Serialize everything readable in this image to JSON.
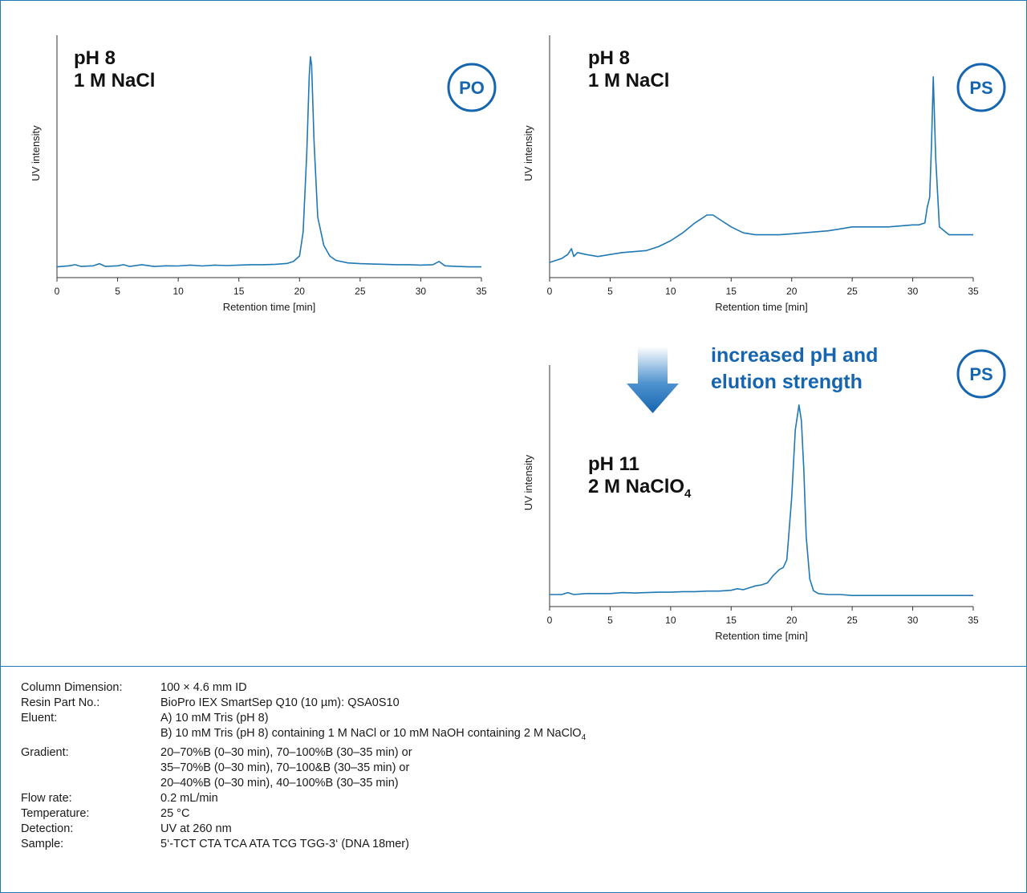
{
  "colors": {
    "trace": "#1f78b4",
    "accent": "#1565b0",
    "axis": "#333333"
  },
  "chart_data": [
    {
      "type": "line",
      "id": "po",
      "badge": "PO",
      "annot_line1": "pH 8",
      "annot_line2": "1 M NaCl",
      "annot_sub": "",
      "xlabel": "Retention time [min]",
      "ylabel": "UV intensity",
      "xlim": [
        0,
        35
      ],
      "ylim": [
        0,
        1
      ],
      "xticks": [
        "0",
        "5",
        "10",
        "15",
        "20",
        "25",
        "30",
        "35"
      ],
      "x": [
        0,
        1,
        1.5,
        2,
        3,
        3.5,
        4,
        5,
        5.5,
        6,
        7,
        8,
        9,
        10,
        11,
        12,
        13,
        14,
        15,
        16,
        17,
        18,
        19,
        19.5,
        20,
        20.3,
        20.6,
        20.8,
        20.9,
        21.0,
        21.2,
        21.5,
        22,
        22.5,
        23,
        24,
        25,
        26,
        27,
        28,
        29,
        30,
        31,
        31.5,
        32,
        33,
        34,
        35
      ],
      "y": [
        0.02,
        0.025,
        0.03,
        0.022,
        0.025,
        0.035,
        0.022,
        0.025,
        0.03,
        0.022,
        0.03,
        0.022,
        0.025,
        0.024,
        0.028,
        0.024,
        0.028,
        0.026,
        0.028,
        0.03,
        0.03,
        0.032,
        0.036,
        0.045,
        0.07,
        0.18,
        0.55,
        0.9,
        0.99,
        0.95,
        0.6,
        0.25,
        0.12,
        0.07,
        0.05,
        0.038,
        0.035,
        0.033,
        0.032,
        0.03,
        0.03,
        0.028,
        0.03,
        0.045,
        0.025,
        0.022,
        0.02,
        0.02
      ]
    },
    {
      "type": "line",
      "id": "ps1",
      "badge": "PS",
      "annot_line1": "pH 8",
      "annot_line2": "1 M NaCl",
      "annot_sub": "",
      "xlabel": "Retention time [min]",
      "ylabel": "UV intensity",
      "xlim": [
        0,
        35
      ],
      "ylim": [
        0,
        1
      ],
      "xticks": [
        "0",
        "5",
        "10",
        "15",
        "20",
        "25",
        "30",
        "35"
      ],
      "x": [
        0,
        0.5,
        1,
        1.5,
        1.8,
        2.0,
        2.3,
        3,
        4,
        5,
        6,
        7,
        8,
        9,
        10,
        11,
        12,
        13,
        13.5,
        14,
        15,
        16,
        17,
        18,
        19,
        20,
        21,
        22,
        23,
        24,
        25,
        26,
        27,
        28,
        29,
        30,
        30.5,
        31,
        31.2,
        31.4,
        31.55,
        31.7,
        31.9,
        32.2,
        33,
        34,
        35
      ],
      "y": [
        0.02,
        0.03,
        0.04,
        0.06,
        0.09,
        0.05,
        0.07,
        0.06,
        0.05,
        0.06,
        0.07,
        0.075,
        0.08,
        0.1,
        0.13,
        0.17,
        0.22,
        0.26,
        0.26,
        0.24,
        0.2,
        0.17,
        0.16,
        0.16,
        0.16,
        0.165,
        0.17,
        0.175,
        0.18,
        0.19,
        0.2,
        0.2,
        0.2,
        0.2,
        0.205,
        0.21,
        0.21,
        0.22,
        0.3,
        0.35,
        0.62,
        0.96,
        0.55,
        0.2,
        0.16,
        0.16,
        0.16
      ]
    },
    {
      "type": "line",
      "id": "ps2",
      "badge": "PS",
      "annot_line1": "pH 11",
      "annot_line2": "2 M NaClO",
      "annot_sub": "4",
      "xlabel": "Retention time [min]",
      "ylabel": "UV intensity",
      "xlim": [
        0,
        35
      ],
      "ylim": [
        0,
        1
      ],
      "xticks": [
        "0",
        "5",
        "10",
        "15",
        "20",
        "25",
        "30",
        "35"
      ],
      "x": [
        0,
        1,
        1.5,
        2,
        3,
        4,
        5,
        6,
        7,
        8,
        9,
        10,
        11,
        12,
        13,
        14,
        15,
        15.5,
        16,
        16.5,
        17,
        17.5,
        18,
        18.5,
        19,
        19.3,
        19.6,
        20,
        20.3,
        20.6,
        20.8,
        21.0,
        21.2,
        21.5,
        21.8,
        22.2,
        23,
        24,
        25,
        26,
        27,
        28,
        29,
        30,
        31,
        32,
        33,
        34,
        35
      ],
      "y": [
        0.0,
        0.0,
        0.01,
        0.0,
        0.005,
        0.005,
        0.005,
        0.01,
        0.008,
        0.01,
        0.012,
        0.012,
        0.015,
        0.015,
        0.018,
        0.018,
        0.022,
        0.03,
        0.025,
        0.035,
        0.045,
        0.05,
        0.06,
        0.1,
        0.13,
        0.14,
        0.18,
        0.5,
        0.85,
        0.98,
        0.9,
        0.65,
        0.3,
        0.08,
        0.02,
        0.005,
        0.0,
        0.0,
        -0.005,
        -0.005,
        -0.005,
        -0.005,
        -0.005,
        -0.005,
        -0.005,
        -0.005,
        -0.005,
        -0.005,
        -0.005
      ]
    }
  ],
  "transition_label": [
    "increased pH and",
    "elution strength"
  ],
  "conditions": [
    {
      "key": "Column Dimension:",
      "lines": [
        "100 × 4.6 mm ID"
      ]
    },
    {
      "key": "Resin Part No.:",
      "lines": [
        "BioPro IEX SmartSep Q10 (10 µm): QSA0S10"
      ]
    },
    {
      "key": "Eluent:",
      "lines": [
        "A) 10 mM Tris (pH 8)",
        "B) 10 mM Tris (pH 8) containing 1 M NaCl or 10 mM NaOH containing 2 M NaClO4"
      ]
    },
    {
      "key": "Gradient:",
      "lines": [
        "20–70%B (0–30 min), 70–100%B (30–35 min) or",
        "35–70%B (0–30 min), 70–100&B (30–35 min) or",
        "20–40%B (0–30 min), 40–100%B (30–35 min)"
      ]
    },
    {
      "key": "Flow rate:",
      "lines": [
        "0.2 mL/min"
      ]
    },
    {
      "key": "Temperature:",
      "lines": [
        "25 °C"
      ]
    },
    {
      "key": "Detection:",
      "lines": [
        "UV at 260 nm"
      ]
    },
    {
      "key": "Sample:",
      "lines": [
        "5‘-TCT CTA TCA ATA TCG TGG-3‘ (DNA 18mer)"
      ]
    }
  ]
}
